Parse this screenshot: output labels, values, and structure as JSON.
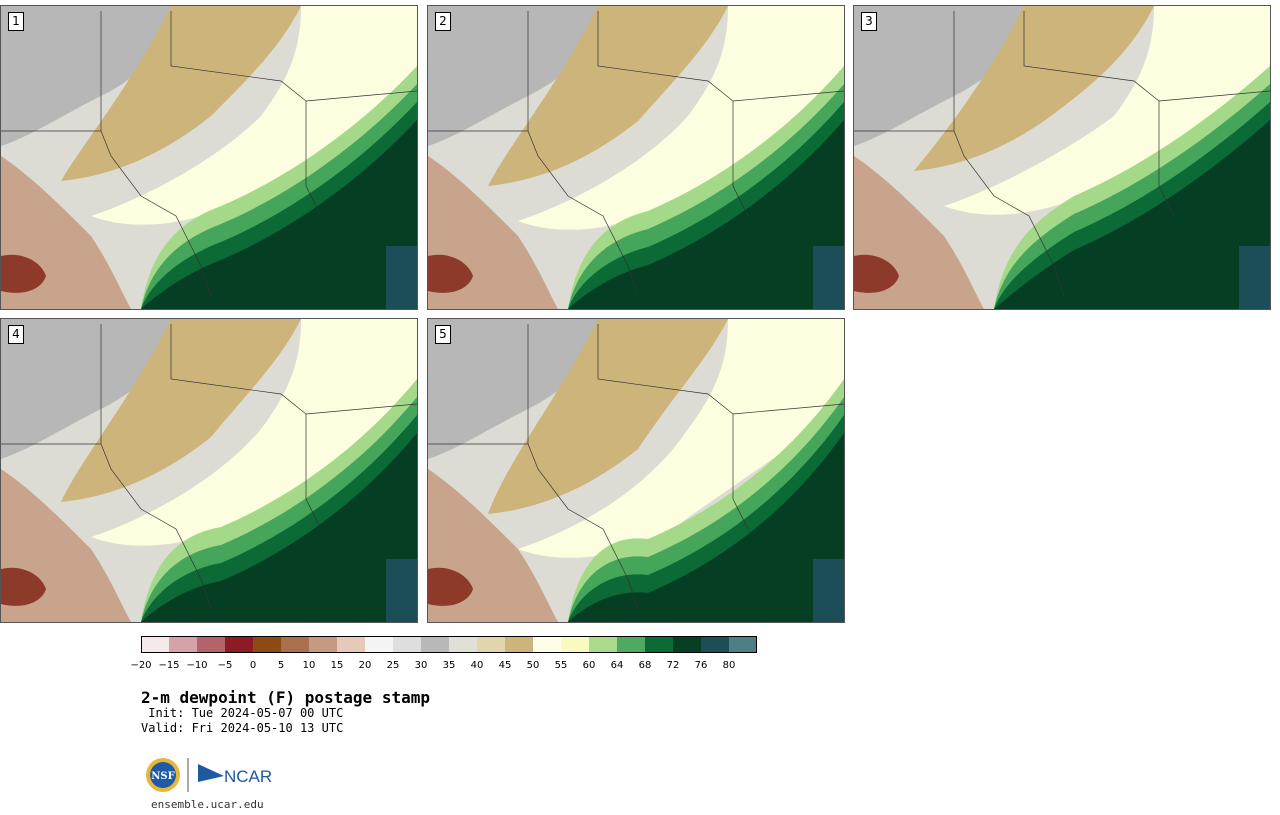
{
  "panels": [
    {
      "label": "1"
    },
    {
      "label": "2"
    },
    {
      "label": "3"
    },
    {
      "label": "4"
    },
    {
      "label": "5"
    }
  ],
  "colorbar": {
    "colors": [
      "#f6e9eb",
      "#d7a1a9",
      "#b3636a",
      "#8d1b23",
      "#8b4a16",
      "#a8714c",
      "#c59a80",
      "#e6c9b8",
      "#f4f4f4",
      "#dedede",
      "#b8b8b8",
      "#e0e0d6",
      "#e1d5ac",
      "#cdb47a",
      "#fefee8",
      "#f8fac0",
      "#a8db8c",
      "#4daa5e",
      "#0a6b36",
      "#073f24",
      "#1c4e56",
      "#4e7f85"
    ],
    "ticks": [
      "−20",
      "−15",
      "−10",
      "−5",
      "0",
      "5",
      "10",
      "15",
      "20",
      "25",
      "30",
      "35",
      "40",
      "45",
      "50",
      "55",
      "60",
      "64",
      "68",
      "72",
      "76",
      "80"
    ]
  },
  "title": "2-m dewpoint (F) postage stamp",
  "init": " Init: Tue 2024-05-07 00 UTC",
  "valid": "Valid: Fri 2024-05-10 13 UTC",
  "logo": {
    "nsf": "NSF",
    "ncar": "NCAR"
  },
  "website": "ensemble.ucar.edu"
}
